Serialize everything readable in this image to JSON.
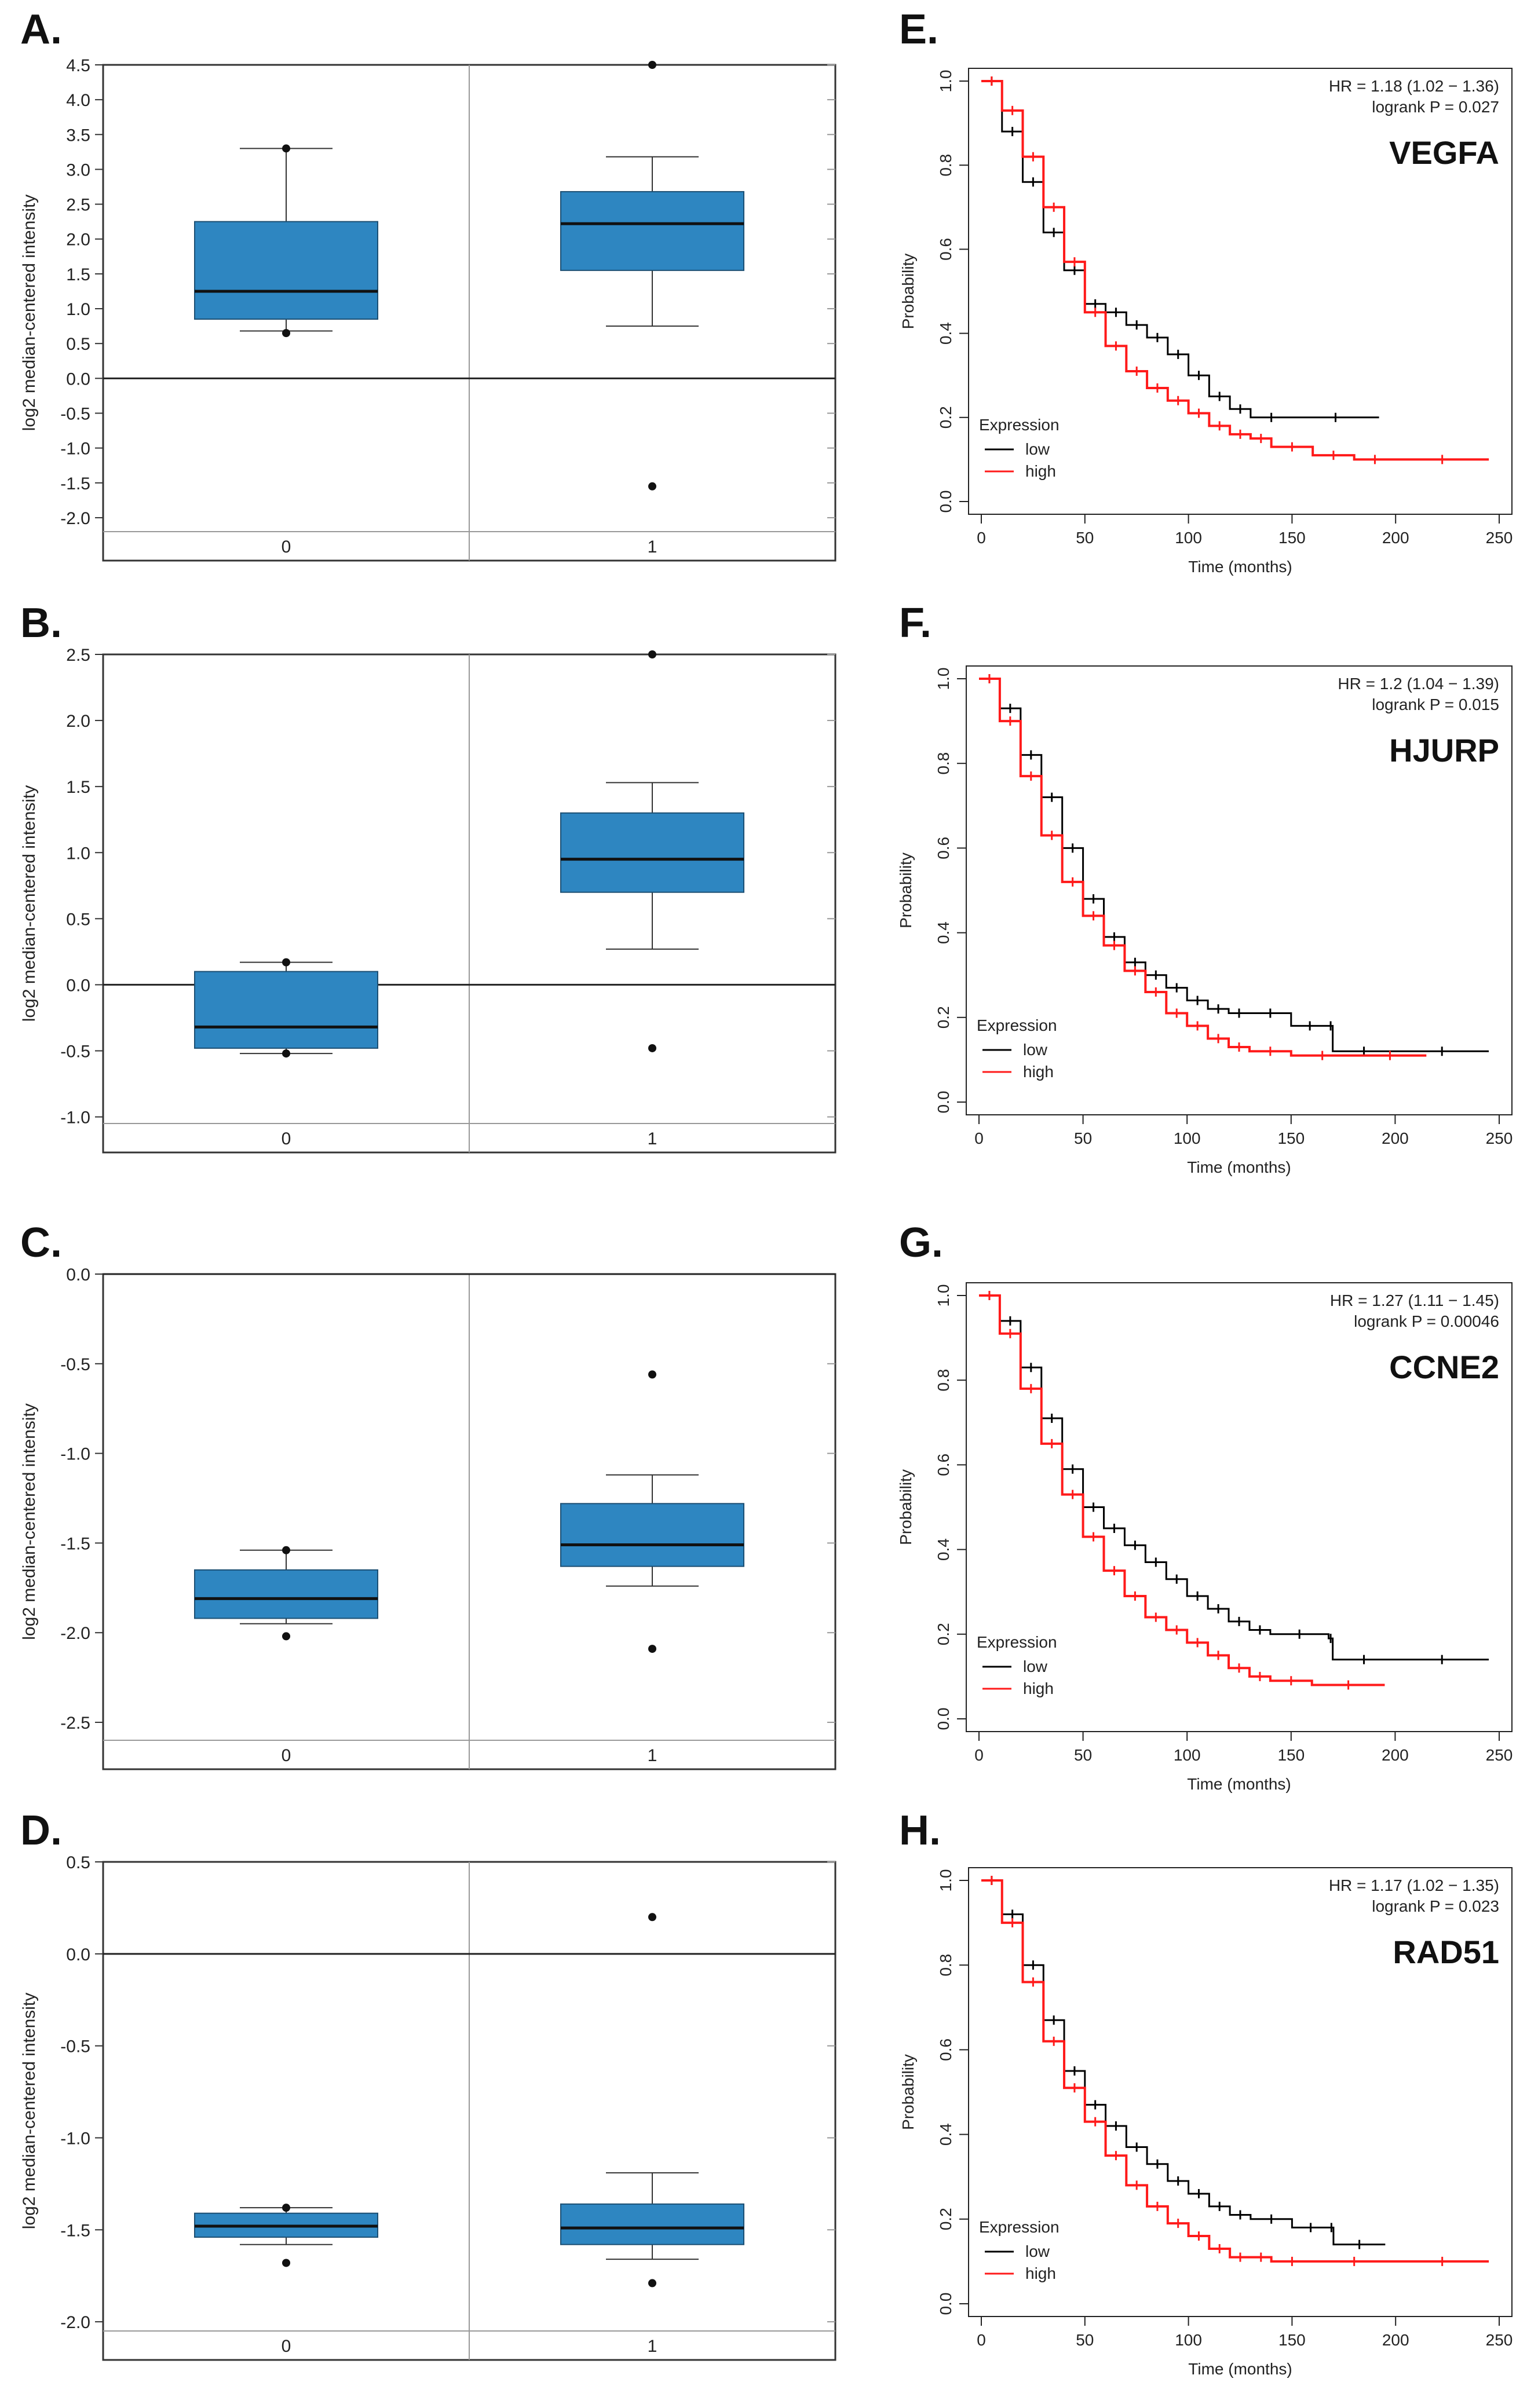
{
  "colors": {
    "box_fill": "#2e86c1",
    "box_stroke": "#1c4f73",
    "low": "#000000",
    "high": "#ff1a1a",
    "frame": "#333333",
    "grid": "#cccccc"
  },
  "chart_data": [
    {
      "panel": "A.",
      "type": "box",
      "ylabel": "log2 median-centered intensity",
      "ylim": [
        -2.2,
        4.5
      ],
      "yticks": [
        "4.5",
        "4.0",
        "3.5",
        "3.0",
        "2.5",
        "2.0",
        "1.5",
        "1.0",
        "0.5",
        "0.0",
        "-0.5",
        "-1.0",
        "-1.5",
        "-2.0"
      ],
      "categories": [
        "0",
        "1"
      ],
      "boxes": [
        {
          "q1": 0.85,
          "median": 1.25,
          "q3": 2.25,
          "whisker_low": 0.68,
          "whisker_high": 3.3,
          "outliers": [
            3.3,
            0.65
          ]
        },
        {
          "q1": 1.55,
          "median": 2.22,
          "q3": 2.68,
          "whisker_low": 0.75,
          "whisker_high": 3.18,
          "outliers": [
            4.5,
            -1.55
          ]
        }
      ]
    },
    {
      "panel": "B.",
      "type": "box",
      "ylabel": "log2 median-centered intensity",
      "ylim": [
        -1.05,
        2.5
      ],
      "yticks": [
        "2.5",
        "2.0",
        "1.5",
        "1.0",
        "0.5",
        "0.0",
        "-0.5",
        "-1.0"
      ],
      "categories": [
        "0",
        "1"
      ],
      "boxes": [
        {
          "q1": -0.48,
          "median": -0.32,
          "q3": 0.1,
          "whisker_low": -0.52,
          "whisker_high": 0.17,
          "outliers": [
            0.17,
            -0.52
          ]
        },
        {
          "q1": 0.7,
          "median": 0.95,
          "q3": 1.3,
          "whisker_low": 0.27,
          "whisker_high": 1.53,
          "outliers": [
            2.5,
            -0.48
          ]
        }
      ]
    },
    {
      "panel": "C.",
      "type": "box",
      "ylabel": "log2 median-centered intensity",
      "ylim": [
        -2.6,
        0.0
      ],
      "yticks": [
        "0.0",
        "-0.5",
        "-1.0",
        "-1.5",
        "-2.0",
        "-2.5"
      ],
      "categories": [
        "0",
        "1"
      ],
      "boxes": [
        {
          "q1": -1.92,
          "median": -1.81,
          "q3": -1.65,
          "whisker_low": -1.95,
          "whisker_high": -1.54,
          "outliers": [
            -1.54,
            -2.02
          ]
        },
        {
          "q1": -1.63,
          "median": -1.51,
          "q3": -1.28,
          "whisker_low": -1.74,
          "whisker_high": -1.12,
          "outliers": [
            -0.56,
            -2.09
          ]
        }
      ]
    },
    {
      "panel": "D.",
      "type": "box",
      "ylabel": "log2 median-centered intensity",
      "ylim": [
        -2.05,
        0.5
      ],
      "yticks": [
        "0.5",
        "0.0",
        "-0.5",
        "-1.0",
        "-1.5",
        "-2.0"
      ],
      "categories": [
        "0",
        "1"
      ],
      "boxes": [
        {
          "q1": -1.54,
          "median": -1.48,
          "q3": -1.41,
          "whisker_low": -1.58,
          "whisker_high": -1.38,
          "outliers": [
            -1.38,
            -1.68
          ]
        },
        {
          "q1": -1.58,
          "median": -1.49,
          "q3": -1.36,
          "whisker_low": -1.66,
          "whisker_high": -1.19,
          "outliers": [
            0.2,
            -1.79
          ]
        }
      ]
    },
    {
      "panel": "E.",
      "type": "line",
      "gene": "VEGFA",
      "hr": "HR = 1.18 (1.02 − 1.36)",
      "logrank": "logrank P = 0.027",
      "xlabel": "Time (months)",
      "ylabel": "Probability",
      "xlim": [
        0,
        250
      ],
      "ylim": [
        0,
        1
      ],
      "xticks": [
        "0",
        "50",
        "100",
        "150",
        "200",
        "250"
      ],
      "yticks": [
        "0.0",
        "0.2",
        "0.4",
        "0.6",
        "0.8",
        "1.0"
      ],
      "legend_title": "Expression",
      "series": [
        {
          "name": "low",
          "x": [
            0,
            10,
            20,
            30,
            40,
            50,
            60,
            70,
            80,
            90,
            100,
            110,
            120,
            130,
            150,
            192
          ],
          "y": [
            1.0,
            0.88,
            0.76,
            0.64,
            0.55,
            0.47,
            0.45,
            0.42,
            0.39,
            0.35,
            0.3,
            0.25,
            0.22,
            0.2,
            0.2,
            0.2
          ]
        },
        {
          "name": "high",
          "x": [
            0,
            10,
            20,
            30,
            40,
            50,
            60,
            70,
            80,
            90,
            100,
            110,
            120,
            130,
            140,
            160,
            180,
            200,
            245
          ],
          "y": [
            1.0,
            0.93,
            0.82,
            0.7,
            0.57,
            0.45,
            0.37,
            0.31,
            0.27,
            0.24,
            0.21,
            0.18,
            0.16,
            0.15,
            0.13,
            0.11,
            0.1,
            0.1,
            0.1
          ]
        }
      ]
    },
    {
      "panel": "F.",
      "type": "line",
      "gene": "HJURP",
      "hr": "HR = 1.2 (1.04 − 1.39)",
      "logrank": "logrank P = 0.015",
      "xlabel": "Time (months)",
      "ylabel": "Probability",
      "xlim": [
        0,
        250
      ],
      "ylim": [
        0,
        1
      ],
      "xticks": [
        "0",
        "50",
        "100",
        "150",
        "200",
        "250"
      ],
      "yticks": [
        "0.0",
        "0.2",
        "0.4",
        "0.6",
        "0.8",
        "1.0"
      ],
      "legend_title": "Expression",
      "series": [
        {
          "name": "low",
          "x": [
            0,
            10,
            20,
            30,
            40,
            50,
            60,
            70,
            80,
            90,
            100,
            110,
            120,
            130,
            150,
            168,
            170,
            200,
            245
          ],
          "y": [
            1.0,
            0.93,
            0.82,
            0.72,
            0.6,
            0.48,
            0.39,
            0.33,
            0.3,
            0.27,
            0.24,
            0.22,
            0.21,
            0.21,
            0.18,
            0.18,
            0.12,
            0.12,
            0.12
          ]
        },
        {
          "name": "high",
          "x": [
            0,
            10,
            20,
            30,
            40,
            50,
            60,
            70,
            80,
            90,
            100,
            110,
            120,
            130,
            150,
            180,
            215
          ],
          "y": [
            1.0,
            0.9,
            0.77,
            0.63,
            0.52,
            0.44,
            0.37,
            0.31,
            0.26,
            0.21,
            0.18,
            0.15,
            0.13,
            0.12,
            0.11,
            0.11,
            0.11
          ]
        }
      ]
    },
    {
      "panel": "G.",
      "type": "line",
      "gene": "CCNE2",
      "hr": "HR = 1.27 (1.11 − 1.45)",
      "logrank": "logrank P = 0.00046",
      "xlabel": "Time (months)",
      "ylabel": "Probability",
      "xlim": [
        0,
        250
      ],
      "ylim": [
        0,
        1
      ],
      "xticks": [
        "0",
        "50",
        "100",
        "150",
        "200",
        "250"
      ],
      "yticks": [
        "0.0",
        "0.2",
        "0.4",
        "0.6",
        "0.8",
        "1.0"
      ],
      "legend_title": "Expression",
      "series": [
        {
          "name": "low",
          "x": [
            0,
            10,
            20,
            30,
            40,
            50,
            60,
            70,
            80,
            90,
            100,
            110,
            120,
            130,
            140,
            168,
            170,
            200,
            245
          ],
          "y": [
            1.0,
            0.94,
            0.83,
            0.71,
            0.59,
            0.5,
            0.45,
            0.41,
            0.37,
            0.33,
            0.29,
            0.26,
            0.23,
            0.21,
            0.2,
            0.19,
            0.14,
            0.14,
            0.14
          ]
        },
        {
          "name": "high",
          "x": [
            0,
            10,
            20,
            30,
            40,
            50,
            60,
            70,
            80,
            90,
            100,
            110,
            120,
            130,
            140,
            160,
            195
          ],
          "y": [
            1.0,
            0.91,
            0.78,
            0.65,
            0.53,
            0.43,
            0.35,
            0.29,
            0.24,
            0.21,
            0.18,
            0.15,
            0.12,
            0.1,
            0.09,
            0.08,
            0.08
          ]
        }
      ]
    },
    {
      "panel": "H.",
      "type": "line",
      "gene": "RAD51",
      "hr": "HR = 1.17 (1.02 − 1.35)",
      "logrank": "logrank P = 0.023",
      "xlabel": "Time (months)",
      "ylabel": "Probability",
      "xlim": [
        0,
        250
      ],
      "ylim": [
        0,
        1
      ],
      "xticks": [
        "0",
        "50",
        "100",
        "150",
        "200",
        "250"
      ],
      "yticks": [
        "0.0",
        "0.2",
        "0.4",
        "0.6",
        "0.8",
        "1.0"
      ],
      "legend_title": "Expression",
      "series": [
        {
          "name": "low",
          "x": [
            0,
            10,
            20,
            30,
            40,
            50,
            60,
            70,
            80,
            90,
            100,
            110,
            120,
            130,
            150,
            168,
            170,
            195
          ],
          "y": [
            1.0,
            0.92,
            0.8,
            0.67,
            0.55,
            0.47,
            0.42,
            0.37,
            0.33,
            0.29,
            0.26,
            0.23,
            0.21,
            0.2,
            0.18,
            0.18,
            0.14,
            0.14
          ]
        },
        {
          "name": "high",
          "x": [
            0,
            10,
            20,
            30,
            40,
            50,
            60,
            70,
            80,
            90,
            100,
            110,
            120,
            130,
            140,
            160,
            200,
            245
          ],
          "y": [
            1.0,
            0.9,
            0.76,
            0.62,
            0.51,
            0.43,
            0.35,
            0.28,
            0.23,
            0.19,
            0.16,
            0.13,
            0.11,
            0.11,
            0.1,
            0.1,
            0.1,
            0.1
          ]
        }
      ]
    }
  ]
}
